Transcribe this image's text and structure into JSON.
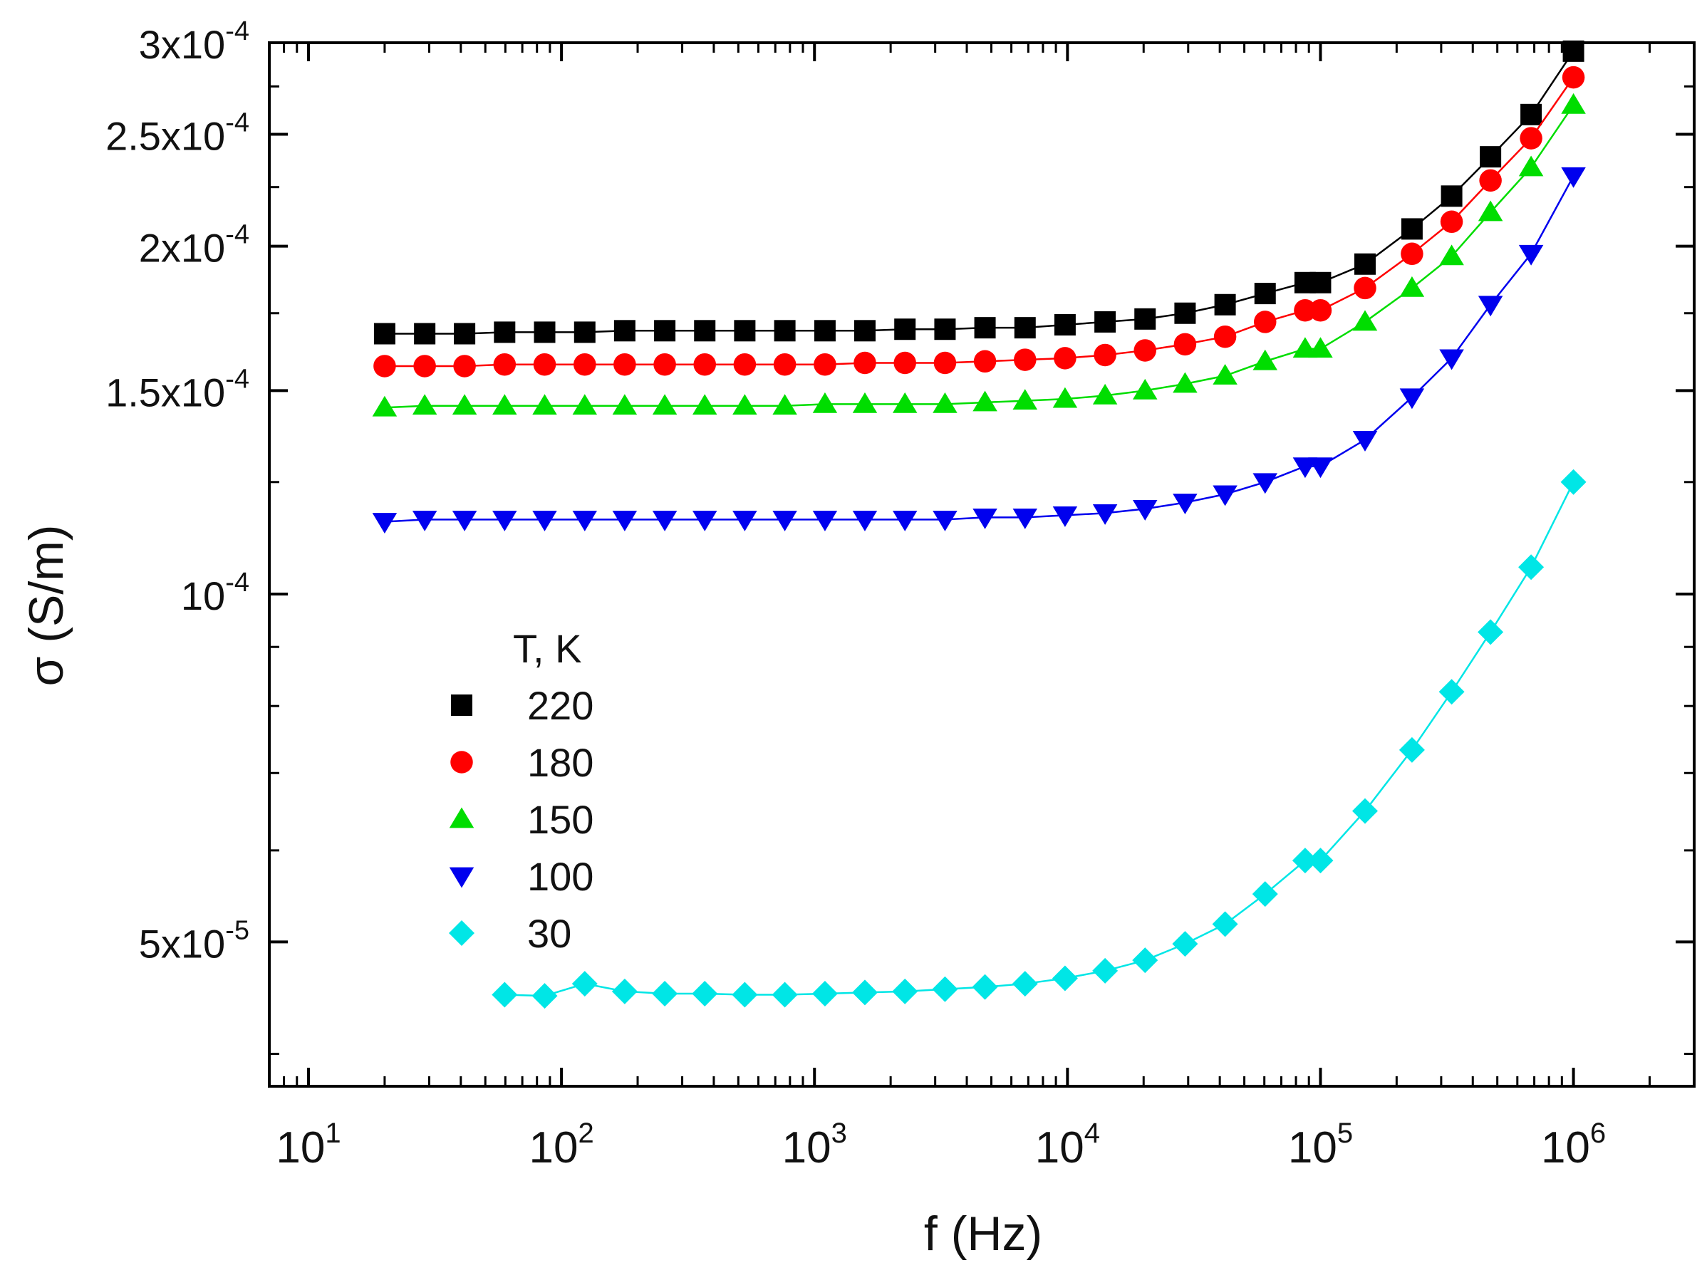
{
  "chart_data": {
    "type": "scatter",
    "title": "",
    "xlabel": "f (Hz)",
    "ylabel": "σ (S/m)",
    "x_scale": "log",
    "y_scale": "log",
    "xlim": [
      7.0,
      3000000
    ],
    "ylim": [
      3.75e-05,
      0.0003
    ],
    "x_ticks": [
      {
        "value": 10,
        "base": "10",
        "exp": "1"
      },
      {
        "value": 100,
        "base": "10",
        "exp": "2"
      },
      {
        "value": 1000,
        "base": "10",
        "exp": "3"
      },
      {
        "value": 10000,
        "base": "10",
        "exp": "4"
      },
      {
        "value": 100000,
        "base": "10",
        "exp": "5"
      },
      {
        "value": 1000000,
        "base": "10",
        "exp": "6"
      }
    ],
    "y_ticks": [
      {
        "value": 5e-05,
        "base": "5x10",
        "exp": "-5"
      },
      {
        "value": 0.0001,
        "base": "10",
        "exp": "-4"
      },
      {
        "value": 0.00015,
        "base": "1.5x10",
        "exp": "-4"
      },
      {
        "value": 0.0002,
        "base": "2x10",
        "exp": "-4"
      },
      {
        "value": 0.00025,
        "base": "2.5x10",
        "exp": "-4"
      },
      {
        "value": 0.0003,
        "base": "3x10",
        "exp": "-4"
      }
    ],
    "y_minor_ticks": [
      6e-05,
      7e-05,
      8e-05,
      9e-05
    ],
    "legend": {
      "title": "T, K",
      "position": "left-center"
    },
    "grid": false,
    "series": [
      {
        "name": "220",
        "marker": "square",
        "color": "#000000",
        "x": [
          20,
          28.8,
          41.4,
          59.6,
          85.8,
          123.6,
          177.8,
          256,
          368.4,
          530.2,
          763.4,
          1100,
          1582,
          2278,
          3280,
          4720,
          6796,
          9780,
          14080,
          20260,
          29160,
          41980,
          60420,
          86960,
          100000,
          150000,
          230000,
          330000,
          470000,
          680000,
          1000000
        ],
        "y": [
          0.000168,
          0.000168,
          0.000168,
          0.0001685,
          0.0001685,
          0.0001685,
          0.000169,
          0.000169,
          0.000169,
          0.000169,
          0.000169,
          0.000169,
          0.000169,
          0.0001695,
          0.0001695,
          0.00017,
          0.00017,
          0.000171,
          0.000172,
          0.000173,
          0.000175,
          0.000178,
          0.000182,
          0.000186,
          0.000186,
          0.000193,
          0.000207,
          0.000221,
          0.000239,
          0.00026,
          0.000295
        ]
      },
      {
        "name": "180",
        "marker": "circle",
        "color": "#ff0000",
        "x": [
          20,
          28.8,
          41.4,
          59.6,
          85.8,
          123.6,
          177.8,
          256,
          368.4,
          530.2,
          763.4,
          1100,
          1582,
          2278,
          3280,
          4720,
          6796,
          9780,
          14080,
          20260,
          29160,
          41980,
          60420,
          86960,
          100000,
          150000,
          230000,
          330000,
          470000,
          680000,
          1000000
        ],
        "y": [
          0.0001575,
          0.0001575,
          0.0001575,
          0.000158,
          0.000158,
          0.000158,
          0.000158,
          0.000158,
          0.000158,
          0.000158,
          0.000158,
          0.000158,
          0.0001585,
          0.0001585,
          0.0001585,
          0.000159,
          0.0001595,
          0.00016,
          0.000161,
          0.0001625,
          0.0001645,
          0.000167,
          0.000172,
          0.000176,
          0.000176,
          0.000184,
          0.000197,
          0.00021,
          0.000228,
          0.000248,
          0.00028
        ]
      },
      {
        "name": "150",
        "marker": "triangle-up",
        "color": "#00dd00",
        "x": [
          20,
          28.8,
          41.4,
          59.6,
          85.8,
          123.6,
          177.8,
          256,
          368.4,
          530.2,
          763.4,
          1100,
          1582,
          2278,
          3280,
          4720,
          6796,
          9780,
          14080,
          20260,
          29160,
          41980,
          60420,
          86960,
          100000,
          150000,
          230000,
          330000,
          470000,
          680000,
          1000000
        ],
        "y": [
          0.000145,
          0.0001455,
          0.0001455,
          0.0001455,
          0.0001455,
          0.0001455,
          0.0001455,
          0.0001455,
          0.0001455,
          0.0001455,
          0.0001455,
          0.000146,
          0.000146,
          0.000146,
          0.000146,
          0.0001465,
          0.000147,
          0.0001475,
          0.0001485,
          0.00015,
          0.000152,
          0.0001545,
          0.000159,
          0.000163,
          0.000163,
          0.000172,
          0.000184,
          0.000196,
          0.000214,
          0.000234,
          0.000265
        ]
      },
      {
        "name": "100",
        "marker": "triangle-down",
        "color": "#0000ee",
        "x": [
          20,
          28.8,
          41.4,
          59.6,
          85.8,
          123.6,
          177.8,
          256,
          368.4,
          530.2,
          763.4,
          1100,
          1582,
          2278,
          3280,
          4720,
          6796,
          9780,
          14080,
          20260,
          29160,
          41980,
          60420,
          86960,
          100000,
          150000,
          230000,
          330000,
          470000,
          680000,
          1000000
        ],
        "y": [
          0.0001155,
          0.000116,
          0.000116,
          0.000116,
          0.000116,
          0.000116,
          0.000116,
          0.000116,
          0.000116,
          0.000116,
          0.000116,
          0.000116,
          0.000116,
          0.000116,
          0.000116,
          0.0001165,
          0.0001165,
          0.000117,
          0.0001175,
          0.0001185,
          0.00012,
          0.000122,
          0.000125,
          0.000129,
          0.000129,
          0.000136,
          0.000148,
          0.00016,
          0.000178,
          0.000197,
          0.00023
        ]
      },
      {
        "name": "30",
        "marker": "diamond",
        "color": "#00e6e6",
        "x": [
          59.6,
          85.8,
          123.6,
          177.8,
          256,
          368.4,
          530.2,
          763.4,
          1100,
          1582,
          2278,
          3280,
          4720,
          6796,
          9780,
          14080,
          20260,
          29160,
          41980,
          60420,
          86960,
          100000,
          150000,
          230000,
          330000,
          470000,
          680000,
          1000000
        ],
        "y": [
          4.5e-05,
          4.49e-05,
          4.6e-05,
          4.53e-05,
          4.51e-05,
          4.51e-05,
          4.5e-05,
          4.5e-05,
          4.51e-05,
          4.52e-05,
          4.53e-05,
          4.55e-05,
          4.57e-05,
          4.6e-05,
          4.65e-05,
          4.72e-05,
          4.82e-05,
          4.98e-05,
          5.18e-05,
          5.5e-05,
          5.88e-05,
          5.88e-05,
          6.49e-05,
          7.33e-05,
          8.23e-05,
          9.27e-05,
          0.0001055,
          0.000125
        ]
      }
    ]
  }
}
